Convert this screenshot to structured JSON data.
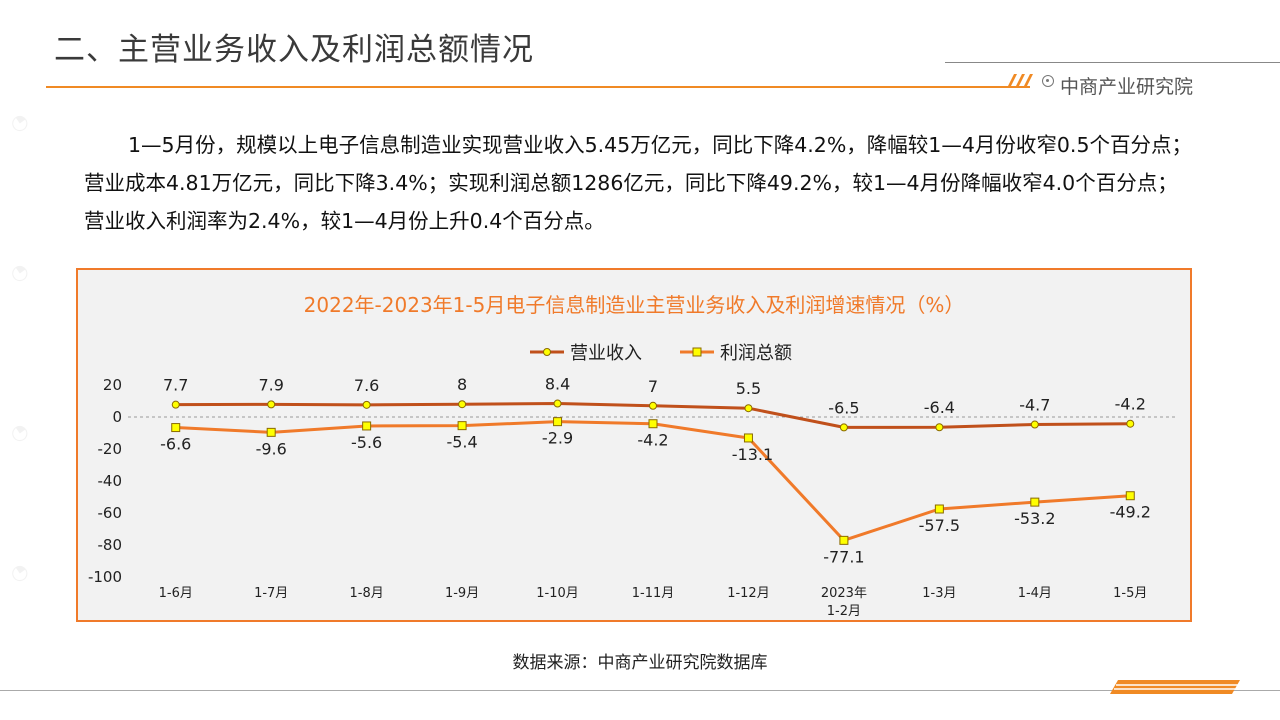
{
  "header": {
    "title": "二、主营业务收入及利润总额情况",
    "brand": "中商产业研究院"
  },
  "paragraph": "1—5月份，规模以上电子信息制造业实现营业收入5.45万亿元，同比下降4.2%，降幅较1—4月份收窄0.5个百分点；营业成本4.81万亿元，同比下降3.4%；实现利润总额1286亿元，同比下降49.2%，较1—4月份降幅收窄4.0个百分点；营业收入利润率为2.4%，较1—4月份上升0.4个百分点。",
  "source": "数据来源：中商产业研究院数据库",
  "colors": {
    "accent": "#f08a24",
    "revenue": "#c0501b",
    "profit": "#f07a2a",
    "marker_fill": "#ffff00"
  },
  "chart_data": {
    "type": "line",
    "title": "2022年-2023年1-5月电子信息制造业主营业务收入及利润增速情况（%）",
    "categories": [
      "1-6月",
      "1-7月",
      "1-8月",
      "1-9月",
      "1-10月",
      "1-11月",
      "1-12月",
      "2023年\n1-2月",
      "1-3月",
      "1-4月",
      "1-5月"
    ],
    "series": [
      {
        "name": "营业收入",
        "values": [
          7.7,
          7.9,
          7.6,
          8,
          8.4,
          7,
          5.5,
          -6.5,
          -6.4,
          -4.7,
          -4.2
        ]
      },
      {
        "name": "利润总额",
        "values": [
          -6.6,
          -9.6,
          -5.6,
          -5.4,
          -2.9,
          -4.2,
          -13.1,
          -77.1,
          -57.5,
          -53.2,
          -49.2
        ]
      }
    ],
    "ylim": [
      -100,
      20
    ],
    "yticks": [
      20,
      0,
      -20,
      -40,
      -60,
      -80,
      -100
    ],
    "legend_position": "top-center"
  }
}
